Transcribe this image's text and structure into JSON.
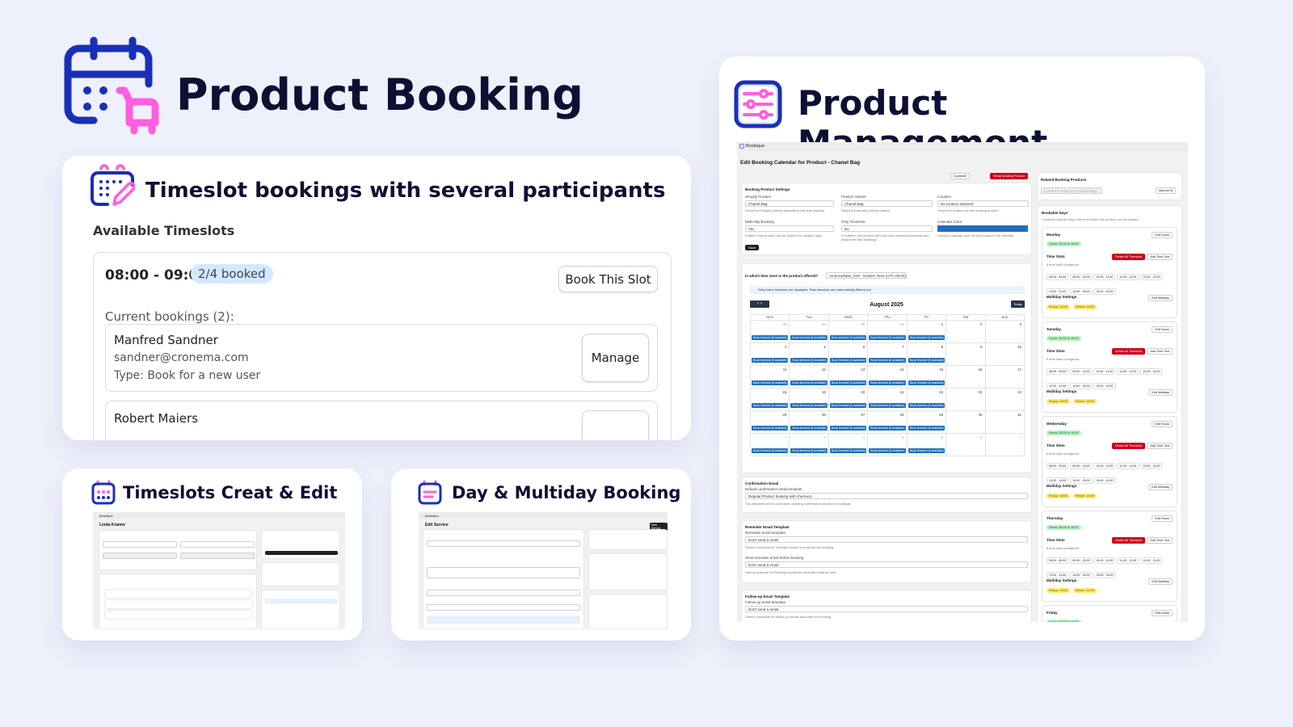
{
  "colors": {
    "background": "#eef0fb",
    "navy": "#0d1033",
    "icon_blue": "#1a2fb8",
    "icon_pink": "#ff5ee0",
    "badge_bg": "#d6e9fb",
    "calendar_blue": "#1f6fc0",
    "danger": "#d0021b"
  },
  "hero": {
    "title": "Product Booking",
    "icon": "calendar-cart-icon"
  },
  "timeslot_card": {
    "title": "Timeslot bookings with several participants",
    "icon": "calendar-edit-icon",
    "section_title": "Available Timeslots",
    "slot": {
      "time": "08:00 - 09:00",
      "badge": "2/4 booked",
      "book_button": "Book This Slot"
    },
    "current_bookings_label": "Current bookings (2):",
    "bookings": [
      {
        "name": "Manfred Sandner",
        "email": "sandner@cronema.com",
        "type": "Type: Book for a new user",
        "action": "Manage"
      },
      {
        "name": "Robert Maiers"
      }
    ]
  },
  "feature_cards": [
    {
      "title": "Timeslots Creat & Edit",
      "icon": "calendar-grid-icon",
      "brand": "Bookique",
      "page_title": "Linda Kramer"
    },
    {
      "title": "Day & Multiday Booking",
      "icon": "calendar-list-icon",
      "brand": "Bookique",
      "page_title": "Edit Service",
      "header_button": "New Service"
    }
  ],
  "management": {
    "title": "Product Management",
    "icon": "sliders-icon",
    "app": {
      "brand": "Bookique",
      "page_title": "Edit Booking Calendar for Product - Chanel Bag",
      "actions": {
        "duplicate": "Duplicate",
        "setup": "Setup Booking Product"
      },
      "settings": {
        "title": "Booking Product Settings",
        "shopify_product": {
          "label": "Shopify Product",
          "value": "Chanel Bag",
          "hint": "Select the Shopify product associated with this booking"
        },
        "variant": {
          "label": "Product Variant",
          "value": "Chanel Bag",
          "hint": "Select the specific product variant"
        },
        "location": {
          "label": "Location",
          "value": "No location selected",
          "hint": "Select the location for this booking product"
        },
        "multiday": {
          "label": "Multi-day Booking",
          "value": "Yes",
          "hint": "Enable if this product can be booked for multiple days"
        },
        "only_timeslots": {
          "label": "Only Timeslots",
          "value": "No",
          "hint": "If enabled, this product will only show individual timeslots and disable full day bookings"
        },
        "calendar_color": {
          "label": "Calendar Color",
          "value": "#1f6fc0",
          "hint": "Choose a display color for the product in the calendar"
        },
        "save": "Save"
      },
      "timezone": {
        "question": "In which time zone is the product offered?",
        "value": "America/New_York - Eastern Time (UTC-05:00)",
        "info": "Only future timeslots are displayed. Past timeslots are automatically filtered out."
      },
      "calendar": {
        "month": "August 2025",
        "today": "Today",
        "weekdays": [
          "Mon",
          "Tue",
          "Wed",
          "Thu",
          "Fri",
          "Sat",
          "Sun"
        ],
        "weeks": [
          [
            28,
            29,
            30,
            31,
            1,
            2,
            3
          ],
          [
            4,
            5,
            6,
            7,
            8,
            9,
            10
          ],
          [
            11,
            12,
            13,
            14,
            15,
            16,
            17
          ],
          [
            18,
            19,
            20,
            21,
            22,
            23,
            24
          ],
          [
            25,
            26,
            27,
            28,
            29,
            30,
            31
          ],
          [
            1,
            2,
            3,
            4,
            5,
            6,
            7
          ]
        ],
        "chip": "Book timeslot (8 available)"
      },
      "confirmation": {
        "title": "Confirmation Email",
        "label": "Default confirmation email template",
        "value": "Regular Product booking with checkout",
        "hint": "This template will be used when sending confirmation emails for bookings"
      },
      "reminder": {
        "title": "Reminder Email Template",
        "label": "Reminder email template",
        "value": "Don't send a email",
        "hint": "Select a template for reminder emails sent before the booking",
        "label2": "Send reminder email before booking",
        "value2": "Don't send a email",
        "hint2": "How long before the booking should the reminder email be sent"
      },
      "followup": {
        "title": "Follow-up Email Template",
        "label": "Follow-up email template",
        "value": "Don't send a email",
        "hint": "Select a template for follow-up emails sent after the booking"
      },
      "related": {
        "title": "Related Booking Products",
        "value": "Current Product #1 (Chanel Bag)",
        "button": "Manual ID"
      },
      "bookable": {
        "title": "Bookable Days",
        "subtitle": "Configure specific days and times when this product can be booked.",
        "edit_hours": "Edit Hours",
        "time_slots": "Time Slots",
        "delete_all": "Delete All Timeslots",
        "add_slot": "Add Time Slot",
        "configured": "8 time slots configured",
        "multiday": "Multiday Settings",
        "edit_multiday": "Edit Multiday",
        "pickup": "Pickup: 08:00",
        "return": "Return: 16:00",
        "hours": "Hours: 08:00 to 16:00",
        "slots": [
          "08:00 - 09:00",
          "09:00 - 10:00",
          "10:00 - 11:00",
          "11:00 - 12:00",
          "12:00 - 13:00",
          "13:00 - 14:00",
          "14:00 - 15:00",
          "15:00 - 16:00"
        ],
        "days": [
          "Monday",
          "Tuesday",
          "Wednesday",
          "Thursday",
          "Friday"
        ]
      }
    }
  }
}
